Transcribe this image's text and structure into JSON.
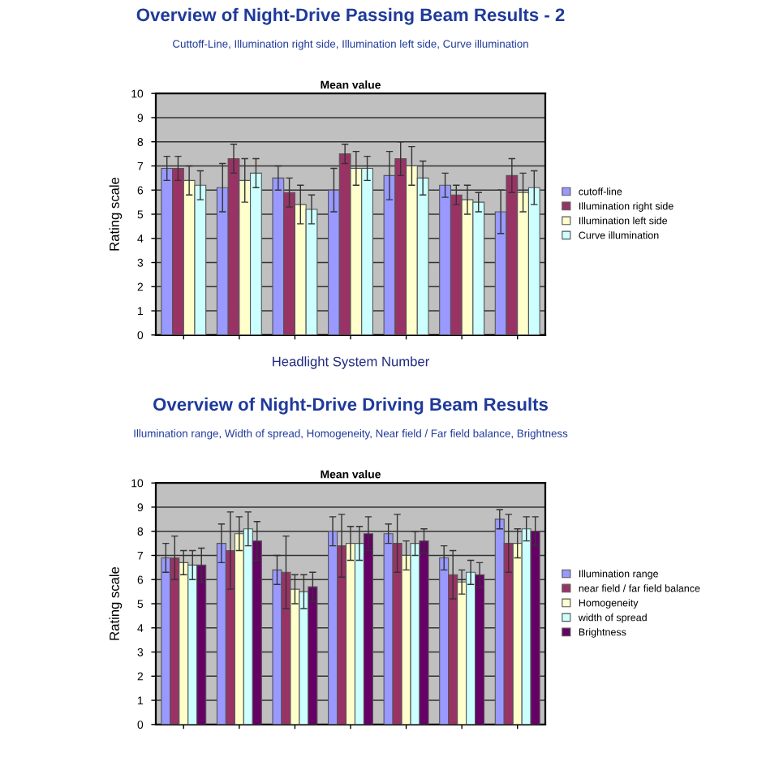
{
  "chart_data": [
    {
      "type": "bar",
      "title": "Overview of Night-Drive Passing Beam Results - 2",
      "subtitle": "Cuttoff-Line, Illumination right side, Illumination left side, Curve illumination",
      "annotations": [
        "Mean value"
      ],
      "xlabel": "Headlight System Number",
      "ylabel": "Rating scale",
      "categories": [
        null,
        null,
        null,
        null,
        null,
        null,
        null
      ],
      "ylim": [
        0,
        10
      ],
      "yticks": [
        0,
        1,
        2,
        3,
        4,
        5,
        6,
        7,
        8,
        9,
        10
      ],
      "grid": "y",
      "legend": "right",
      "series": [
        {
          "name": "cutoff-line",
          "color": "#9999ff",
          "values": [
            6.9,
            6.1,
            6.5,
            6.0,
            6.6,
            6.2,
            5.1
          ],
          "errors": [
            0.5,
            1.0,
            0.5,
            0.9,
            1.0,
            0.5,
            0.9
          ]
        },
        {
          "name": "Illumination right side",
          "color": "#993366",
          "values": [
            6.9,
            7.3,
            5.9,
            7.5,
            7.3,
            5.8,
            6.6
          ],
          "errors": [
            0.5,
            0.6,
            0.6,
            0.4,
            0.7,
            0.4,
            0.7
          ]
        },
        {
          "name": "Illumination left side",
          "color": "#ffffcc",
          "values": [
            6.4,
            6.4,
            5.4,
            6.9,
            7.0,
            5.6,
            5.9
          ],
          "errors": [
            0.6,
            0.9,
            0.8,
            0.7,
            0.8,
            0.6,
            0.8
          ]
        },
        {
          "name": "Curve illumination",
          "color": "#ccffff",
          "values": [
            6.2,
            6.7,
            5.2,
            6.9,
            6.5,
            5.5,
            6.1
          ],
          "errors": [
            0.6,
            0.6,
            0.6,
            0.5,
            0.7,
            0.4,
            0.7
          ]
        }
      ]
    },
    {
      "type": "bar",
      "title": "Overview of Night-Drive Driving Beam Results",
      "subtitle": "Illumination range, Width of spread, Homogeneity, Near field / Far field balance, Brightness",
      "annotations": [
        "Mean value"
      ],
      "ylabel": "Rating scale",
      "categories": [
        null,
        null,
        null,
        null,
        null,
        null,
        null
      ],
      "ylim": [
        0,
        10
      ],
      "yticks": [
        0,
        1,
        2,
        3,
        4,
        5,
        6,
        7,
        8,
        9,
        10
      ],
      "grid": "y",
      "legend": "right",
      "series": [
        {
          "name": "Illumination range",
          "color": "#9999ff",
          "values": [
            6.9,
            7.5,
            6.4,
            8.0,
            7.9,
            6.9,
            8.5
          ],
          "errors": [
            0.6,
            0.8,
            0.6,
            0.6,
            0.4,
            0.5,
            0.4
          ]
        },
        {
          "name": "near field / far field balance",
          "color": "#993366",
          "values": [
            6.9,
            7.2,
            6.3,
            7.4,
            7.5,
            6.2,
            7.5
          ],
          "errors": [
            0.9,
            1.6,
            1.5,
            1.3,
            1.2,
            1.0,
            1.2
          ]
        },
        {
          "name": "Homogeneity",
          "color": "#ffffcc",
          "values": [
            6.7,
            7.9,
            5.6,
            7.5,
            7.0,
            5.9,
            7.5
          ],
          "errors": [
            0.5,
            0.7,
            0.6,
            0.7,
            0.6,
            0.5,
            0.6
          ]
        },
        {
          "name": "width of spread",
          "color": "#ccffff",
          "values": [
            6.6,
            8.1,
            5.5,
            7.5,
            7.5,
            6.3,
            8.1
          ],
          "errors": [
            0.6,
            0.7,
            0.7,
            0.7,
            0.5,
            0.5,
            0.5
          ]
        },
        {
          "name": "Brightness",
          "color": "#660066",
          "values": [
            6.6,
            7.6,
            5.7,
            7.9,
            7.6,
            6.2,
            8.0
          ],
          "errors": [
            0.7,
            0.8,
            0.6,
            0.7,
            0.5,
            0.5,
            0.6
          ]
        }
      ]
    }
  ]
}
